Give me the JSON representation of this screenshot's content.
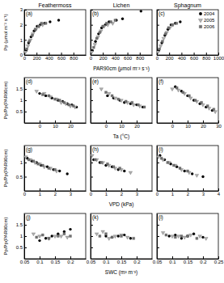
{
  "chart_data": [
    {
      "type": "scatter",
      "title": "Feathermoss",
      "annotation": "(a)",
      "ylabel": "Pp (μmol m⁻² s⁻¹)",
      "xlim": [
        0,
        1000
      ],
      "ylim": [
        0,
        3
      ],
      "xticks": [
        0,
        200,
        400,
        600,
        800
      ],
      "yticks": [
        0,
        1,
        2,
        3
      ],
      "series": [
        {
          "color": "#000000",
          "marker": "circle",
          "x": [
            30,
            70,
            110,
            160,
            210,
            260,
            330,
            420,
            560
          ],
          "values": [
            0.3,
            0.8,
            1.2,
            1.6,
            1.9,
            2.0,
            2.1,
            2.2,
            2.3
          ]
        },
        {
          "color": "#b0b0b0",
          "marker": "triangle-down",
          "x": [
            20,
            60,
            100,
            140,
            190,
            240,
            300
          ],
          "values": [
            0.2,
            0.6,
            1.0,
            1.4,
            1.7,
            1.9,
            2.0
          ]
        },
        {
          "color": "#707070",
          "marker": "square",
          "x": [
            40,
            80,
            130,
            180,
            230,
            280,
            350
          ],
          "values": [
            0.4,
            0.9,
            1.3,
            1.7,
            1.9,
            2.1,
            2.1
          ]
        }
      ]
    },
    {
      "type": "scatter",
      "title": "Lichen",
      "annotation": "(b)",
      "xlabel": "PAR90cm (μmol m⁻² s⁻¹)",
      "xlim": [
        0,
        1000
      ],
      "ylim": [
        0,
        3
      ],
      "xticks": [
        0,
        200,
        400,
        600,
        800
      ],
      "yticks": [
        0,
        1,
        2,
        3
      ],
      "tick_labels": "x",
      "series": [
        {
          "color": "#000000",
          "marker": "circle",
          "x": [
            30,
            80,
            130,
            180,
            240,
            300,
            420,
            520,
            820
          ],
          "values": [
            0.3,
            0.9,
            1.4,
            1.8,
            2.0,
            2.2,
            2.3,
            2.4,
            2.9
          ]
        },
        {
          "color": "#b0b0b0",
          "marker": "triangle-down",
          "x": [
            20,
            70,
            120,
            170,
            220,
            280,
            360
          ],
          "values": [
            0.2,
            0.7,
            1.2,
            1.6,
            1.9,
            2.0,
            2.1
          ]
        },
        {
          "color": "#707070",
          "marker": "square",
          "x": [
            50,
            100,
            150,
            200,
            260,
            330,
            400
          ],
          "values": [
            0.5,
            1.1,
            1.5,
            1.9,
            2.1,
            2.2,
            2.3
          ]
        }
      ]
    },
    {
      "type": "scatter",
      "title": "Sphagnum",
      "annotation": "(c)",
      "xlim": [
        0,
        1000
      ],
      "ylim": [
        0,
        3
      ],
      "xticks": [
        0,
        200,
        400,
        600,
        800,
        1000
      ],
      "yticks": [
        0,
        1,
        2,
        3
      ],
      "tick_labels": "x",
      "legend": "top-right",
      "series": [
        {
          "name": "2004",
          "color": "#000000",
          "marker": "circle",
          "x": [
            30,
            80,
            130,
            180,
            230,
            300,
            380
          ],
          "values": [
            0.3,
            0.8,
            1.3,
            1.7,
            2.0,
            2.1,
            2.2
          ]
        },
        {
          "name": "2005",
          "color": "#b0b0b0",
          "marker": "triangle-down",
          "x": [
            20,
            60,
            110,
            160,
            210,
            260
          ],
          "values": [
            0.2,
            0.6,
            1.1,
            1.5,
            1.8,
            2.0
          ]
        },
        {
          "name": "2006",
          "color": "#707070",
          "marker": "square",
          "x": [
            40,
            90,
            140,
            190,
            250,
            320
          ],
          "values": [
            0.4,
            0.9,
            1.4,
            1.8,
            2.0,
            2.1
          ]
        }
      ]
    },
    {
      "type": "scatter",
      "annotation": "(d)",
      "ylabel": "Pp/Pp(PAR90cm)",
      "xlim": [
        -10,
        30
      ],
      "ylim": [
        0,
        2
      ],
      "xticks": [
        0,
        10,
        20
      ],
      "yticks": [
        0.5,
        1,
        1.5
      ],
      "series": [
        {
          "color": "#000000",
          "marker": "circle",
          "x": [
            0,
            4,
            8,
            12,
            15,
            18,
            21,
            24
          ],
          "values": [
            1.3,
            1.2,
            1.1,
            1.0,
            0.95,
            0.85,
            0.8,
            0.7
          ]
        },
        {
          "color": "#b0b0b0",
          "marker": "triangle-down",
          "x": [
            -2,
            3,
            7,
            11,
            14,
            17,
            20,
            23
          ],
          "values": [
            1.4,
            1.3,
            1.15,
            1.05,
            0.9,
            0.85,
            0.75,
            0.7
          ]
        },
        {
          "color": "#707070",
          "marker": "square",
          "x": [
            2,
            6,
            10,
            13,
            16,
            19,
            22
          ],
          "values": [
            1.25,
            1.2,
            1.05,
            1.0,
            0.9,
            0.8,
            0.75
          ]
        }
      ]
    },
    {
      "type": "scatter",
      "annotation": "(e)",
      "xlabel": "Ta (°C)",
      "xlim": [
        -10,
        30
      ],
      "ylim": [
        0,
        2
      ],
      "xticks": [
        0,
        10,
        20
      ],
      "yticks": [
        0.5,
        1,
        1.5
      ],
      "tick_labels": "x",
      "series": [
        {
          "color": "#000000",
          "marker": "circle",
          "x": [
            1,
            5,
            9,
            12,
            16,
            20,
            24
          ],
          "values": [
            1.2,
            1.1,
            1.0,
            0.9,
            0.85,
            0.8,
            0.7
          ]
        },
        {
          "color": "#b0b0b0",
          "marker": "triangle-down",
          "x": [
            -3,
            2,
            6,
            10,
            14,
            18,
            22
          ],
          "values": [
            1.5,
            1.3,
            1.1,
            1.0,
            0.9,
            0.8,
            0.75
          ]
        },
        {
          "color": "#707070",
          "marker": "square",
          "x": [
            0,
            4,
            8,
            13,
            17,
            21,
            25
          ],
          "values": [
            1.35,
            1.2,
            1.05,
            0.95,
            0.9,
            0.8,
            0.7
          ]
        }
      ]
    },
    {
      "type": "scatter",
      "annotation": "(f)",
      "xlim": [
        -10,
        30
      ],
      "ylim": [
        0,
        2
      ],
      "xticks": [
        0,
        10,
        20,
        30
      ],
      "yticks": [
        0.5,
        1,
        1.5
      ],
      "tick_labels": "x",
      "series": [
        {
          "color": "#000000",
          "marker": "circle",
          "x": [
            2,
            6,
            10,
            14,
            18,
            22,
            26
          ],
          "values": [
            1.6,
            1.4,
            1.2,
            1.0,
            0.85,
            0.7,
            0.55
          ]
        },
        {
          "color": "#b0b0b0",
          "marker": "triangle-down",
          "x": [
            0,
            4,
            8,
            12,
            16,
            20,
            24,
            28
          ],
          "values": [
            1.5,
            1.45,
            1.3,
            1.1,
            0.95,
            0.8,
            0.65,
            0.5
          ]
        },
        {
          "color": "#707070",
          "marker": "square",
          "x": [
            3,
            7,
            11,
            15,
            19,
            23,
            27
          ],
          "values": [
            1.55,
            1.35,
            1.2,
            1.0,
            0.9,
            0.75,
            0.6
          ]
        }
      ]
    },
    {
      "type": "scatter",
      "annotation": "(g)",
      "ylabel": "Pp/Pp(PAR90cm)",
      "xlim": [
        0,
        4
      ],
      "ylim": [
        0,
        1.6
      ],
      "xticks": [
        0,
        1,
        2,
        3
      ],
      "yticks": [
        0.5,
        1
      ],
      "series": [
        {
          "color": "#000000",
          "marker": "circle",
          "x": [
            0.2,
            0.5,
            0.8,
            1.1,
            1.5,
            1.9,
            2.3,
            2.8
          ],
          "values": [
            1.15,
            1.05,
            1.0,
            0.9,
            0.85,
            0.75,
            0.7,
            0.6
          ]
        },
        {
          "color": "#b0b0b0",
          "marker": "triangle-down",
          "x": [
            0.1,
            0.4,
            0.7,
            1.0,
            1.3,
            1.7,
            2.1
          ],
          "values": [
            1.2,
            1.1,
            1.0,
            0.95,
            0.85,
            0.8,
            0.7
          ]
        },
        {
          "color": "#707070",
          "marker": "square",
          "x": [
            0.3,
            0.6,
            0.9,
            1.2,
            1.6,
            2.0
          ],
          "values": [
            1.1,
            1.05,
            0.95,
            0.9,
            0.8,
            0.75
          ]
        }
      ]
    },
    {
      "type": "scatter",
      "annotation": "(h)",
      "xlabel": "VPD (kPa)",
      "xlim": [
        0,
        4
      ],
      "ylim": [
        0,
        1.6
      ],
      "xticks": [
        0,
        1,
        2,
        3
      ],
      "yticks": [
        0.5,
        1
      ],
      "tick_labels": "x",
      "series": [
        {
          "color": "#000000",
          "marker": "circle",
          "x": [
            0.2,
            0.6,
            1.0,
            1.4,
            1.8,
            2.2
          ],
          "values": [
            1.1,
            1.0,
            0.9,
            0.85,
            0.75,
            0.7
          ]
        },
        {
          "color": "#b0b0b0",
          "marker": "triangle-down",
          "x": [
            0.1,
            0.4,
            0.8,
            1.2,
            1.6,
            2.0,
            2.6
          ],
          "values": [
            1.25,
            1.1,
            1.0,
            0.9,
            0.8,
            0.75,
            0.65
          ]
        },
        {
          "color": "#707070",
          "marker": "square",
          "x": [
            0.3,
            0.7,
            1.1,
            1.5,
            1.9
          ],
          "values": [
            1.1,
            1.0,
            0.95,
            0.85,
            0.8
          ]
        }
      ]
    },
    {
      "type": "scatter",
      "annotation": "(i)",
      "xlim": [
        0,
        4
      ],
      "ylim": [
        0,
        1.6
      ],
      "xticks": [
        0,
        1,
        2,
        3,
        4
      ],
      "yticks": [
        0.5,
        1
      ],
      "tick_labels": "x",
      "series": [
        {
          "color": "#000000",
          "marker": "circle",
          "x": [
            0.2,
            0.5,
            0.9,
            1.3,
            1.8,
            2.3,
            3.0
          ],
          "values": [
            1.25,
            1.1,
            0.95,
            0.85,
            0.7,
            0.6,
            0.5
          ]
        },
        {
          "color": "#b0b0b0",
          "marker": "triangle-down",
          "x": [
            0.1,
            0.4,
            0.8,
            1.2,
            1.6,
            2.1,
            2.6
          ],
          "values": [
            1.2,
            1.1,
            1.0,
            0.9,
            0.75,
            0.65,
            0.55
          ]
        },
        {
          "color": "#707070",
          "marker": "square",
          "x": [
            0.3,
            0.7,
            1.1,
            1.5,
            2.0
          ],
          "values": [
            1.15,
            1.0,
            0.9,
            0.8,
            0.7
          ]
        }
      ]
    },
    {
      "type": "scatter",
      "annotation": "(j)",
      "ylabel": "Pp/Pp(PAR90cm)",
      "xlim": [
        0.05,
        0.25
      ],
      "ylim": [
        0,
        2
      ],
      "xticks": [
        0.05,
        0.1,
        0.15,
        0.2
      ],
      "yticks": [
        0.5,
        1,
        1.5
      ],
      "series": [
        {
          "color": "#000000",
          "marker": "circle",
          "x": [
            0.1,
            0.12,
            0.14,
            0.16,
            0.18,
            0.2
          ],
          "values": [
            0.8,
            0.9,
            1.0,
            1.1,
            1.2,
            1.3
          ]
        },
        {
          "color": "#b0b0b0",
          "marker": "triangle-down",
          "x": [
            0.08,
            0.1,
            0.13,
            0.15,
            0.17,
            0.19
          ],
          "values": [
            1.1,
            1.0,
            0.9,
            1.0,
            1.0,
            0.95
          ]
        },
        {
          "color": "#707070",
          "marker": "square",
          "x": [
            0.09,
            0.11,
            0.13,
            0.16,
            0.18,
            0.2
          ],
          "values": [
            0.95,
            1.05,
            0.9,
            1.0,
            1.1,
            1.0
          ]
        }
      ]
    },
    {
      "type": "scatter",
      "annotation": "(k)",
      "xlabel": "SWC (m³ m⁻³)",
      "xlim": [
        0.05,
        0.25
      ],
      "ylim": [
        0,
        2
      ],
      "xticks": [
        0.05,
        0.1,
        0.15,
        0.2
      ],
      "yticks": [
        0.5,
        1,
        1.5
      ],
      "tick_labels": "x",
      "series": [
        {
          "color": "#000000",
          "marker": "circle",
          "x": [
            0.1,
            0.12,
            0.14,
            0.16,
            0.18
          ],
          "values": [
            1.0,
            0.95,
            1.0,
            1.05,
            0.9
          ]
        },
        {
          "color": "#b0b0b0",
          "marker": "triangle-down",
          "x": [
            0.07,
            0.09,
            0.11,
            0.13,
            0.15,
            0.17
          ],
          "values": [
            1.1,
            1.2,
            0.9,
            1.0,
            1.05,
            0.95
          ]
        },
        {
          "color": "#707070",
          "marker": "square",
          "x": [
            0.08,
            0.1,
            0.12,
            0.15,
            0.19
          ],
          "values": [
            1.0,
            1.1,
            0.95,
            1.0,
            0.9
          ]
        }
      ]
    },
    {
      "type": "scatter",
      "annotation": "(l)",
      "xlim": [
        0.05,
        0.25
      ],
      "ylim": [
        0,
        2
      ],
      "xticks": [
        0.05,
        0.1,
        0.15,
        0.2,
        0.25
      ],
      "yticks": [
        0.5,
        1,
        1.5
      ],
      "tick_labels": "x",
      "series": [
        {
          "color": "#000000",
          "marker": "circle",
          "x": [
            0.09,
            0.11,
            0.13,
            0.15,
            0.17,
            0.2
          ],
          "values": [
            1.0,
            1.05,
            0.9,
            1.0,
            1.1,
            0.95
          ]
        },
        {
          "color": "#b0b0b0",
          "marker": "triangle-down",
          "x": [
            0.07,
            0.1,
            0.12,
            0.14,
            0.16,
            0.19,
            0.21
          ],
          "values": [
            1.15,
            1.0,
            1.0,
            0.95,
            1.05,
            1.0,
            0.9
          ]
        },
        {
          "color": "#707070",
          "marker": "square",
          "x": [
            0.08,
            0.11,
            0.13,
            0.15,
            0.18
          ],
          "values": [
            1.05,
            0.95,
            1.0,
            1.0,
            0.9
          ]
        }
      ]
    }
  ]
}
